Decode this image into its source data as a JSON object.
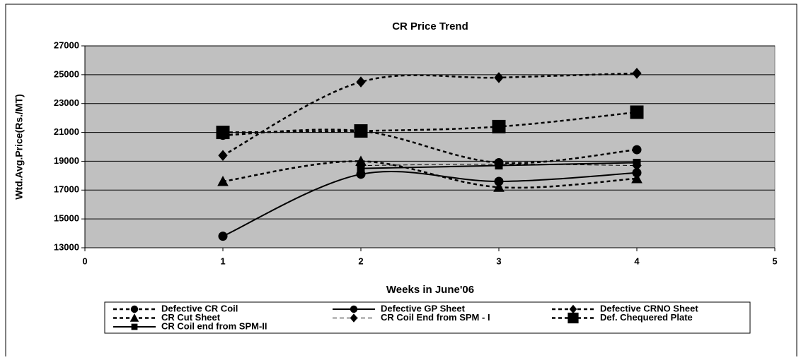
{
  "chart_data": {
    "type": "line",
    "title": "CR Price Trend",
    "x_label": "Weeks in June'06",
    "y_label": "Wtd.Avg.Price(Rs./MT)",
    "x": [
      1,
      2,
      3,
      4
    ],
    "xlim": [
      0,
      5
    ],
    "xticks": [
      0,
      1,
      2,
      3,
      4,
      5
    ],
    "ylim": [
      13000,
      27000
    ],
    "yticks": [
      13000,
      15000,
      17000,
      19000,
      21000,
      23000,
      25000,
      27000
    ],
    "grid": true,
    "plot_background": "#c0c0c0",
    "series": [
      {
        "name": "Defective CR Coil",
        "color": "#000000",
        "marker": "circle",
        "dash": "dashed",
        "values": [
          20800,
          21100,
          18900,
          19800
        ]
      },
      {
        "name": "Defective GP Sheet",
        "color": "#000000",
        "marker": "circle",
        "dash": "solid",
        "values": [
          13800,
          18100,
          17600,
          18200
        ]
      },
      {
        "name": "Defective CRNO Sheet",
        "color": "#000000",
        "marker": "diamond",
        "dash": "dashed",
        "values": [
          19400,
          24500,
          24800,
          25100
        ]
      },
      {
        "name": "CR Cut Sheet",
        "color": "#000000",
        "marker": "triangle",
        "dash": "dashed",
        "values": [
          17600,
          19000,
          17200,
          17800
        ]
      },
      {
        "name": "CR Coil End from SPM - I",
        "color": "#000000",
        "marker": "diamond",
        "dash": "thin-dashed",
        "values": [
          null,
          18700,
          18800,
          18700
        ]
      },
      {
        "name": "Def. Chequered Plate",
        "color": "#000000",
        "marker": "big-square",
        "dash": "dashed",
        "values": [
          21000,
          21100,
          21400,
          22400
        ]
      },
      {
        "name": "CR Coil end from SPM-II",
        "color": "#000000",
        "marker": "square",
        "dash": "solid",
        "values": [
          null,
          18500,
          18700,
          18900
        ]
      }
    ]
  }
}
